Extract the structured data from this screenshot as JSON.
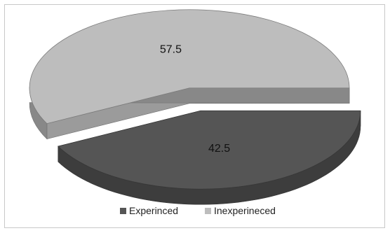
{
  "chart_data": {
    "type": "pie",
    "style": "3d-exploded",
    "categories": [
      "Experinced",
      "Inexperineced"
    ],
    "values": [
      42.5,
      57.5
    ],
    "data_labels": [
      "42.5",
      "57.5"
    ],
    "colors": [
      "#555555",
      "#bdbdbd"
    ],
    "legend": {
      "position": "bottom",
      "entries": [
        "Experinced",
        "Inexperineced"
      ]
    }
  }
}
